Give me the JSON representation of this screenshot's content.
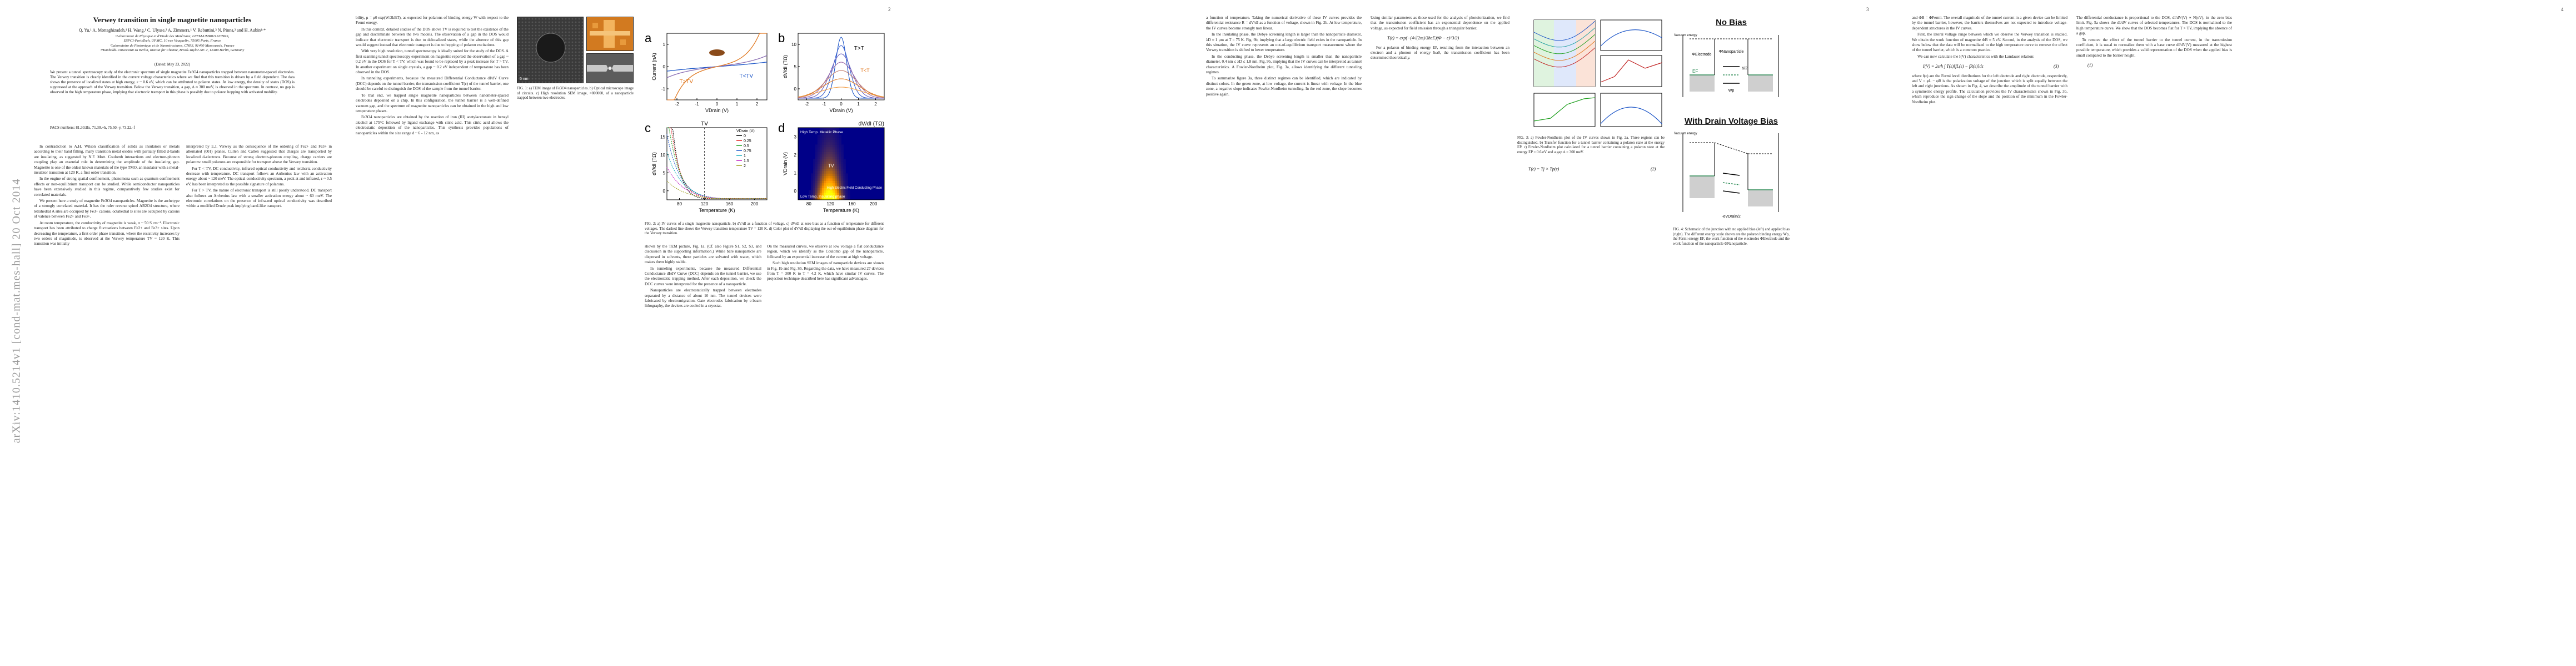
{
  "arxiv_stamp": "arXiv:1410.5214v1  [cond-mat.mes-hall]  20 Oct 2014",
  "page_numbers": [
    "2",
    "3",
    "4"
  ],
  "paper": {
    "title": "Verwey transition in single magnetite nanoparticles",
    "authors": "Q. Yu,¹ A. Mottaghizadeh,¹ H. Wang,¹ C. Ulysse,² A. Zimmers,¹ V. Rebuttini,³ N. Pinna,³ and H. Aubin¹·*",
    "affiliations": [
      "¹Laboratoire de Physique et d'Etude des Matériaux, LPEM-UMR8213/CNRS,",
      "ESPCI-ParisTech, UPMC, 10 rue Vauquelin, 75005 Paris, France",
      "²Laboratoire de Photonique et de Nanostructures, CNRS, 91460 Marcoussis, France",
      "³Humboldt-Universität zu Berlin, Institut für Chemie, Brook-Taylor-Str. 2, 12489 Berlin, Germany"
    ],
    "dated": "(Dated: May 23, 2022)",
    "abstract": "We present a tunnel spectroscopy study of the electronic spectrum of single magnetite Fe3O4 nanoparticles trapped between nanometer-spaced electrodes. The Verwey transition is clearly identified in the current voltage characteristics where we find that this transition is driven by a field dependent. The data shows the presence of localized states at high energy, ε ~ 0.6 eV, which can be attributed to polaron states. At low energy, the density of states (DOS) is suppressed at the approach of the Verwey transition. Below the Verwey transition, a gap, ∆ ≈ 300 meV, is observed in the spectrum. In contrast, no gap is observed in the high temperature phase, implying that electronic transport in this phase is possibly due to polaron hopping with activated mobility.",
    "pacs": "PACS numbers: 81.30.Bx, 71.30.+h, 75.50.-y, 73.22.-f"
  },
  "sections": {
    "intro_1": "In contradiction to A.H. Wilson classification of solids as insulators or metals according to their band filling, many transition metal oxides with partially filled d-bands are insulating, as suggested by N.F. Mott. Coulomb interactions and electron-phonon coupling play an essential role in determining the amplitude of the insulating gap. Magnetite is one of the oldest known materials of the type TMO, an insulator with a metal-insulator transition at 120 K, a first order transition.",
    "intro_2": "In the engine of strong spatial confinement, phenomena such as quantum confinement effects or non-equilibrium transport can be studied. While semiconductor nanoparticles have been extensively studied in this regime, comparatively few studies exist for correlated materials.",
    "intro_3": "We present here a study of magnetite Fe3O4 nanoparticles. Magnetite is the archetype of a strongly correlated material. It has the ruler reverse spinel AB2O4 structure, where tetrahedral A sites are occupied by Fe3+ cations, octahedral B sites are occupied by cations of valence between Fe2+ and Fe3+.",
    "intro_4": "At room temperature, the conductivity of magnetite is weak, σ ~ 50 S cm⁻¹. Electronic transport has been attributed to charge fluctuations between Fe2+ and Fe3+ sites. Upon decreasing the temperature, a first order phase transition, where the resistivity increases by two orders of magnitude, is observed at the Verwey temperature TV ~ 120 K. This transition was initially",
    "col2_1": "interpreted by E.J. Verwey as the consequence of the ordering of Fe2+ and Fe3+ in alternated (001) planes. Cullen and Callen suggested that charges are transported by localized d-electrons. Because of strong electron-phonon coupling, charge carriers are polarons: small polarons are responsible for transport above the Verwey transition.",
    "col2_2": "For T < TV, DC conductivity, infrared optical conductivity and terahertz conductivity decrease with temperature. DC transport follows an Arrhenius law with an activation energy about ~ 120 meV. The optical conductivity spectrum, a peak at and infrared, ε ~ 0.5 eV, has been interpreted as the possible signature of polarons.",
    "col2_3": "For T > TV, the nature of electronic transport is still poorly understood. DC transport also follows an Arrhenius law with a smaller activation energy about ~ 60 meV. The electronic correlations on the presence of infra-red optical conductivity was described within a modified Drude peak implying band-like transport.",
    "col3_1": "bility, μ = μ0 exp(W/2kBT), as expected for polarons of binding energy W with respect to the Fermi energy.",
    "col3_2": "In this context, detailed studies of the DOS above TV is required to test the existence of the gap and discriminate between the two models. The observation of a gap in the DOS would indicate that electronic transport is due to delocalized states, while the absence of this gap would suggest instead that electronic transport is due to hopping of polaron excitations.",
    "col3_3": "With very high resolution, tunnel spectroscopy is ideally suited for the study of the DOS. A first scanning tunnel spectroscopy experiment on magnetite reported the observation of a gap ~ 0.2 eV in the DOS for T < TV, which was found to be replaced by a peak increase for T > TV. In another experiment on single crystals, a gap ~ 0.2 eV independent of temperature has been observed in the DOS.",
    "col3_4": "In tunneling experiments, because the measured Differential Conductance dI/dV Curve (DCC) depends on the tunnel barrier, the transmission coefficient T(ε) of the tunnel barrier, one should be careful to distinguish the DOS of the sample from the tunnel barrier.",
    "col3_5": "To that end, we trapped single magnetite nanoparticles between nanometer-spaced electrodes deposited on a chip. In this configuration, the tunnel barrier is a well-defined vacuum gap, and the spectrum of magnetite nanoparticles can be obtained in the high and low temperature phases.",
    "col3_6": "Fe3O4 nanoparticles are obtained by the reaction of iron (III) acetylacetonate in benzyl alcohol at 175°C followed by ligand exchange with citric acid. This citric acid allows the electrostatic deposition of the nanoparticles. This synthesis provides populations of nanoparticles within the size range d ~ 6 - 12 nm, as",
    "col4_1": "shown by the TEM picture, Fig. 1a. (Cf. also Figure S1, S2, S3, and discussion in the supporting information.) While bare nanoparticle are dispersed in solvents, these particles are solvated with water, which makes them highly stable.",
    "col4_2": "In tunneling experiments, because the measured Differential Conductance dI/dV Curve (DCC) depends on the tunnel barrier, we use the electrostatic trapping method. After each deposition, we check the DCC curves were interpreted for the presence of a nanoparticle.",
    "col4_3": "Nanoparticles are electrostatically trapped between electrodes separated by a distance of about 10 nm. The tunnel devices were fabricated by electromigration. Gate electrodes fabrication by e-beam lithography, the devices are cooled in a cryostat.",
    "col4_4": "On the measured curves, we observe at low voltage a flat conductance region, which we identify as the Coulomb gap of the nanoparticle, followed by an exponential increase of the current at high voltage.",
    "col4_5": "Such high resolution SEM images of nanoparticle devices are shown in Fig. 1b and Fig. S5. Regarding the data, we have measured 27 devices from T = 300 K to T = 4.2 K, which have similar IV curves. The projection technique described here has significant advantages.",
    "col5_1": "a function of temperature. Taking the numerical derivative of these IV curves provides the differential resistance R = dV/dI as a function of voltage, shown in Fig. 2b. At low temperature, the IV curves become strongly non linear.",
    "col5_2": "In the insulating phase, the Debye screening length is larger than the nanoparticle diameter, λD ≈ 1 μm at T = 75 K. Fig. 9b, implying that a large electric field exists in the nanoparticle. In this situation, the IV curve represents an out-of-equilibrium transport measurement where the Verwey transition is shifted to lower temperature.",
    "col5_3": "In the conducting phase, the Debye screening length is smaller than the nanoparticle diameter, 0.4 nm ≤ λD ≤ 1.8 nm. Fig. 9b, implying that the IV curves can be interpreted as tunnel characteristics. A Fowler-Nordheim plot, Fig. 3a, allows identifying the different tunneling regimes.",
    "col5_4": "To summarize figure 3a, three distinct regimes can be identified, which are indicated by distinct colors. In the green zone, at low voltage, the current is linear with voltage. In the blue zone, a negative slope indicates Fowler-Nordheim tunneling. In the red zone, the slope becomes positive again.",
    "col5_5": "Using similar parameters as those used for the analysis of photoionization, we find that the transmission coefficient has an exponential dependence on the applied voltage, as expected for field emission through a triangular barrier.",
    "col5_6": "For a polaron of binding energy EP, resulting from the interaction between an electron and a phonon of energy ħω0, the transmission coefficient has been determined theoretically.",
    "col7_1": "and ΦB = ΦFermi. The overall magnitude of the tunnel current in a given device can be limited by the tunnel barrier, however, the barriers themselves are not expected to introduce voltage-dependent structures in the IV curves.",
    "col7_2": "First, the lateral voltage range between which we observe the Verwey transition is studied. We obtain the work function of magnetite ΦB ≈ 5 eV. Second, in the analysis of the DOS, we show below that the data will be normalized to the high temperature curve to remove the effect of the tunnel barrier, which is a common practice.",
    "col7_3": "We can now calculate the I(V) characteristics with the Landauer relation:",
    "col7_4": "where f(ε) are the Fermi level distributions for the left electrode and right electrode, respectively, and V = φL − φR is the polarization voltage of the junction which is split equally between the left and right junctions. As shown in Fig. 4, we describe the amplitude of the tunnel barrier with a symmetric energy profile. The calculation provides the IV characteristics shown in Fig. 3b, which reproduce the sign change of the slope and the position of the minimum in the Fowler-Nordheim plot.",
    "col7_5": "The differential conductance is proportional to the DOS, dI/dV(V) ∝ N(eV), in the zero bias limit. Fig. 5a shows the dI/dV curves of selected temperatures. The DOS is normalized to the high temperature curve. We show that the DOS becomes flat for T > TV, implying the absence of a gap.",
    "col7_6": "To remove the effect of the tunnel barrier to the tunnel current, in the transmission coefficient, it is usual to normalize them with a base curve dI/dV(V) measured at the highest possible temperature, which provides a valid representation of the DOS when the applied bias is small compared to the barrier height."
  },
  "eq_labels": {
    "eq1": "(1)",
    "eq2": "(2)",
    "eq3": "(3)",
    "landauer": "I(V) = 2e/h ∫ T(ε)[fL(ε) − fR(ε)]dε",
    "transmission": "T(ε) = exp(−(4√(2m)/3ħeE)(Φ − ε)^3/2)",
    "tt": "T(ε) = Tj × Tp(ε)"
  },
  "figures": {
    "fig1_caption": "FIG. 1: a) TEM image of Fe3O4 nanoparticles. b) Optical microscope image of circuits. c) High resolution SEM image, ×800000, of a nanoparticle trapped between two electrodes.",
    "fig1_scale": [
      "5 nm",
      "50 μm",
      "20 nm"
    ],
    "fig2_caption": "FIG. 2: a) IV curves of a single magnetite nanoparticle. b) dV/dI as a function of voltage. c) dV/dI at zero bias as a function of temperature for different voltages. The dashed line shows the Verwey transition temperature TV = 120 K. d) Color plot of dV/dI displaying the out-of-equilibrium phase diagram for the Verwey transition.",
    "fig3_caption": "FIG. 3: a) Fowler-Nordheim plot of the IV curves shown in Fig. 2a. Three regions can be distinguished. b) Transfer function for a tunnel barrier containing a polaron state at the energy EP. c) Fowler-Nordheim plot calculated for a tunnel barrier containing a polaron state at the energy EP = 0.6 eV and a gap ∆ = 300 meV.",
    "fig4_caption": "FIG. 4: Schematic of the junction with no applied bias (left) and applied bias (right). The different energy scale shown are the polaron binding energy Wp, the Fermi energy EF, the work function of the electrodes ΦElectrode and the work function of the nanoparticle ΦNanoparticle.",
    "fig2_panels": [
      "a",
      "b",
      "c",
      "d"
    ]
  },
  "chart_data": [
    {
      "type": "line",
      "panel": "a",
      "xlabel": "VDrain (V)",
      "ylabel": "Current (nA)",
      "x_ticks": [
        "-2",
        "-1",
        "0",
        "1",
        "2"
      ],
      "y_ticks": [
        "-1",
        "0",
        "1"
      ],
      "xlim": [
        -2,
        2
      ],
      "ylim": [
        -1.2,
        1.2
      ],
      "annotations": [
        "T>TV",
        "T<TV"
      ],
      "series": [
        {
          "name": "T<TV",
          "color": "#1e57c8",
          "k": 0.35
        },
        {
          "name": "mid",
          "color": "#8a6db3",
          "k": 0.6
        },
        {
          "name": "T>TV",
          "color": "#e07820",
          "k": 1.1
        }
      ]
    },
    {
      "type": "line",
      "panel": "b",
      "xlabel": "VDrain (V)",
      "ylabel": "dV/dI (TΩ)",
      "x_ticks": [
        "-2",
        "-1",
        "0",
        "1",
        "2"
      ],
      "y_ticks": [
        "0",
        "5",
        "10"
      ],
      "xlim": [
        -2,
        2
      ],
      "ylim": [
        0,
        12
      ],
      "annotations": [
        "T<T",
        "T>T"
      ]
    },
    {
      "type": "line",
      "panel": "c",
      "title": "TV",
      "xlabel": "Temperature (K)",
      "ylabel": "dV/dI (TΩ)",
      "x_ticks": [
        "80",
        "120",
        "160",
        "200"
      ],
      "y_ticks": [
        "0",
        "5",
        "10",
        "15"
      ],
      "xlim": [
        60,
        220
      ],
      "ylim": [
        0,
        16
      ],
      "legend": [
        "0",
        "0.25",
        "0.5",
        "0.75",
        "1",
        "1.5",
        "2"
      ],
      "legend_title": "VDrain (V)"
    },
    {
      "type": "heatmap",
      "panel": "d",
      "title": "dV/dI (TΩ)",
      "xlabel": "Temperature (K)",
      "ylabel": "VDrain (V)",
      "x_ticks": [
        "80",
        "120",
        "160",
        "200"
      ],
      "y_ticks": [
        "0",
        "1",
        "2",
        "3"
      ],
      "labels": [
        "High Temp. Metallic Phase",
        "Low Temp. Insulating phase",
        "High Electric Field Conducting Phase",
        "TV"
      ]
    }
  ],
  "diagram": {
    "no_bias_title": "No Bias",
    "drain_bias_title": "With Drain Voltage Bias",
    "vacuum_energy": "Vacuum energy",
    "labels": [
      "ΦElectrode",
      "ΦNanoparticle",
      "EF",
      "Wp",
      "∆/2",
      "-eVDrain/2"
    ]
  },
  "colors": {
    "orange": "#e07820",
    "blue": "#1e57c8",
    "green": "#2e8b57",
    "heat_hot": "#d7191c"
  }
}
